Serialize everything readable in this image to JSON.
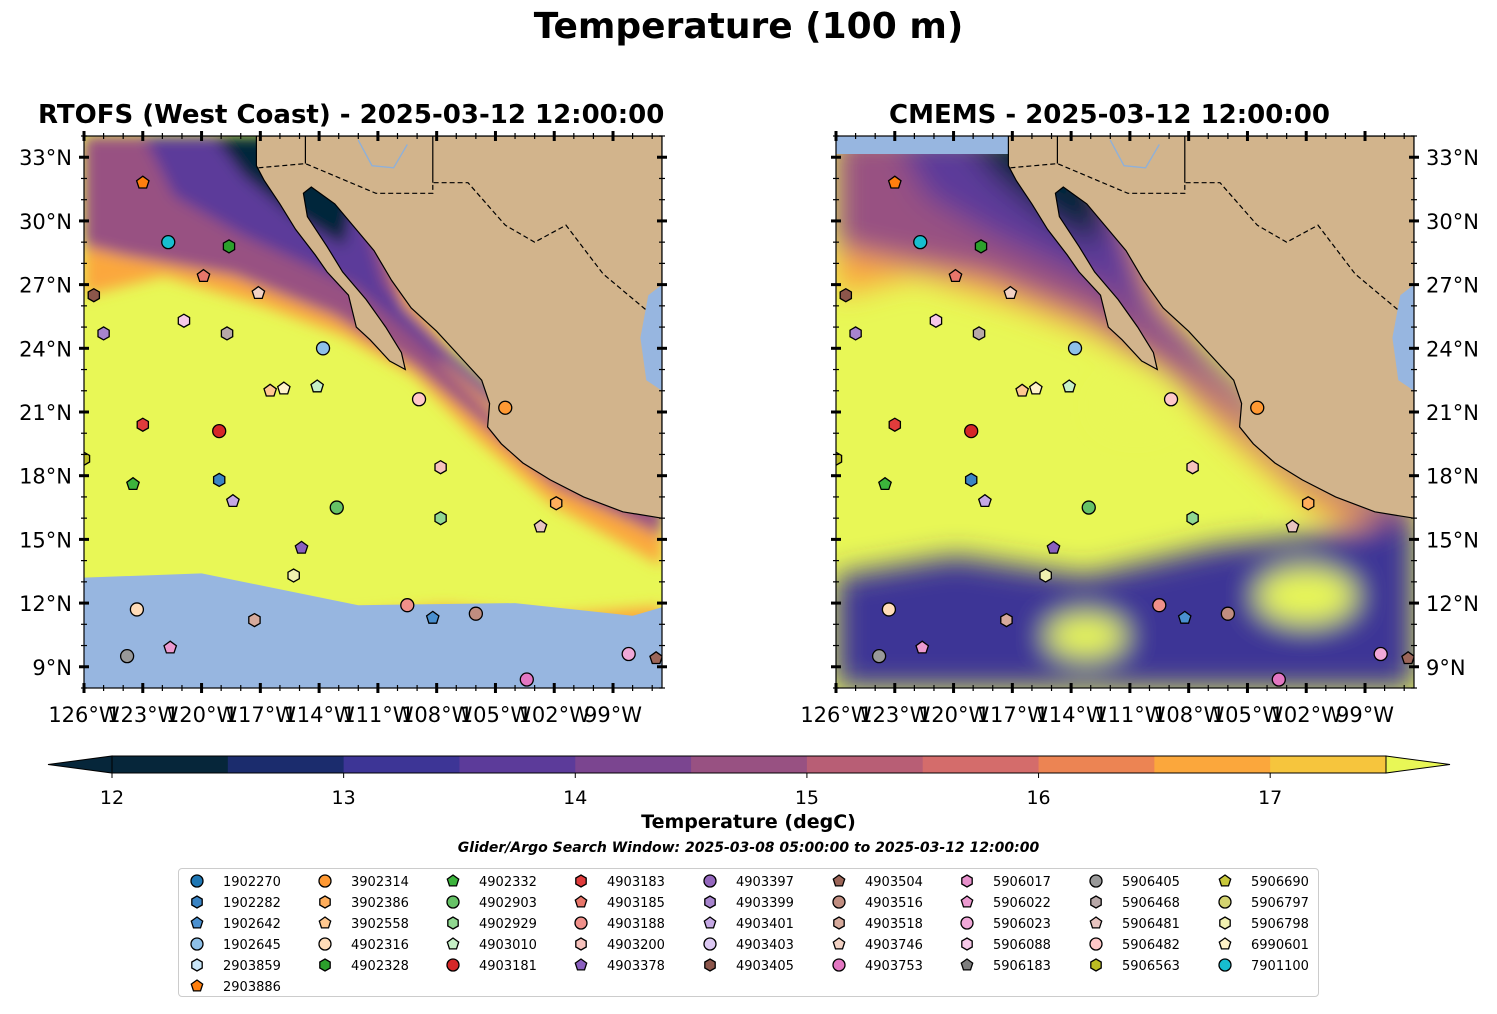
{
  "title": "Temperature (100 m)",
  "panels": [
    {
      "id": "rtofs",
      "title": "RTOFS (West Coast) - 2025-03-12 12:00:00"
    },
    {
      "id": "cmems",
      "title": "CMEMS - 2025-03-12 12:00:00"
    }
  ],
  "colors": {
    "land": "#d2b48c",
    "mask_water": "#97b6e0",
    "ramp": [
      "#06263a",
      "#1b2c6d",
      "#3d3596",
      "#5c3b9a",
      "#7b4590",
      "#985182",
      "#b85e75",
      "#d46c6b",
      "#ec8453",
      "#fba73c",
      "#f6c53d",
      "#e8f756"
    ]
  },
  "chart_data": {
    "type": "map",
    "xlabel": "",
    "ylabel": "",
    "lon_range": [
      -126,
      -96.5
    ],
    "lat_range": [
      8,
      34
    ],
    "lon_ticks": [
      -126,
      -123,
      -120,
      -117,
      -114,
      -111,
      -108,
      -105,
      -102,
      -99
    ],
    "lon_tick_labels": [
      "126°W",
      "123°W",
      "120°W",
      "117°W",
      "114°W",
      "111°W",
      "108°W",
      "105°W",
      "102°W",
      "99°W"
    ],
    "lat_ticks": [
      9,
      12,
      15,
      18,
      21,
      24,
      27,
      30,
      33
    ],
    "lat_tick_labels": [
      "9°N",
      "12°N",
      "15°N",
      "18°N",
      "21°N",
      "24°N",
      "27°N",
      "30°N",
      "33°N"
    ],
    "colorbar": {
      "label": "Temperature (degC)",
      "min": 12,
      "max": 17.5,
      "step": 0.5,
      "ticks": [
        12,
        13,
        14,
        15,
        16,
        17
      ],
      "tick_labels": [
        "12",
        "13",
        "14",
        "15",
        "16",
        "17"
      ],
      "extend": "both"
    },
    "search_window": "Glider/Argo Search Window: 2025-03-08 05:00:00 to 2025-03-12 12:00:00",
    "legend_placement": "bottom-center",
    "floats": [
      {
        "id": "1902270",
        "marker": "circle",
        "color": "#1f77b4"
      },
      {
        "id": "1902282",
        "marker": "hexagon",
        "color": "#3a84c4",
        "lon": -119.1,
        "lat": 17.8
      },
      {
        "id": "1902642",
        "marker": "pentagon",
        "color": "#4a90d0",
        "lon": -108.2,
        "lat": 11.3
      },
      {
        "id": "1902645",
        "marker": "circle",
        "color": "#8ec0e8",
        "lon": -113.8,
        "lat": 24.0
      },
      {
        "id": "2903859",
        "marker": "hexagon",
        "color": "#c9e6f8"
      },
      {
        "id": "2903886",
        "marker": "pentagon",
        "color": "#ff7f0e",
        "lon": -123.0,
        "lat": 31.8
      },
      {
        "id": "3902314",
        "marker": "circle",
        "color": "#ff9933",
        "lon": -104.5,
        "lat": 21.2
      },
      {
        "id": "3902386",
        "marker": "hexagon",
        "color": "#ffae5c",
        "lon": -101.9,
        "lat": 16.7
      },
      {
        "id": "3902558",
        "marker": "pentagon",
        "color": "#ffc890",
        "lon": -116.5,
        "lat": 22.0
      },
      {
        "id": "4902316",
        "marker": "circle",
        "color": "#ffdcb8",
        "lon": -123.3,
        "lat": 11.7
      },
      {
        "id": "4902328",
        "marker": "hexagon",
        "color": "#2ca02c",
        "lon": -118.6,
        "lat": 28.8
      },
      {
        "id": "4902332",
        "marker": "pentagon",
        "color": "#3cb43c",
        "lon": -123.5,
        "lat": 17.6
      },
      {
        "id": "4902903",
        "marker": "circle",
        "color": "#66c266",
        "lon": -113.1,
        "lat": 16.5
      },
      {
        "id": "4902929",
        "marker": "hexagon",
        "color": "#90d890",
        "lon": -107.8,
        "lat": 16.0
      },
      {
        "id": "4903010",
        "marker": "pentagon",
        "color": "#c6f0c6",
        "lon": -114.1,
        "lat": 22.2
      },
      {
        "id": "4903181",
        "marker": "circle",
        "color": "#d62728",
        "lon": -119.1,
        "lat": 20.1
      },
      {
        "id": "4903183",
        "marker": "hexagon",
        "color": "#e03c3c",
        "lon": -123.0,
        "lat": 20.4
      },
      {
        "id": "4903185",
        "marker": "pentagon",
        "color": "#e8766a",
        "lon": -119.9,
        "lat": 27.4
      },
      {
        "id": "4903188",
        "marker": "circle",
        "color": "#f0908a",
        "lon": -109.5,
        "lat": 11.9
      },
      {
        "id": "4903200",
        "marker": "hexagon",
        "color": "#f7c2bc",
        "lon": -107.8,
        "lat": 18.4
      },
      {
        "id": "4903378",
        "marker": "pentagon",
        "color": "#8a5fbf",
        "lon": -114.9,
        "lat": 14.6
      },
      {
        "id": "4903397",
        "marker": "circle",
        "color": "#9467bd"
      },
      {
        "id": "4903399",
        "marker": "hexagon",
        "color": "#a784cd",
        "lon": -125.0,
        "lat": 24.7
      },
      {
        "id": "4903401",
        "marker": "pentagon",
        "color": "#c5a8e4",
        "lon": -118.4,
        "lat": 16.8
      },
      {
        "id": "4903403",
        "marker": "circle",
        "color": "#dcc8f2"
      },
      {
        "id": "4903405",
        "marker": "hexagon",
        "color": "#8c564b",
        "lon": -125.5,
        "lat": 26.5
      },
      {
        "id": "4903504",
        "marker": "pentagon",
        "color": "#9c6659",
        "lon": -96.8,
        "lat": 9.4
      },
      {
        "id": "4903516",
        "marker": "circle",
        "color": "#c08d80",
        "lon": -106.0,
        "lat": 11.5
      },
      {
        "id": "4903518",
        "marker": "hexagon",
        "color": "#d6aa9c",
        "lon": -117.3,
        "lat": 11.2
      },
      {
        "id": "4903746",
        "marker": "pentagon",
        "color": "#f2d2c4",
        "lon": -117.1,
        "lat": 26.6
      },
      {
        "id": "4903753",
        "marker": "circle",
        "color": "#e377c2",
        "lon": -103.4,
        "lat": 8.4
      },
      {
        "id": "5906017",
        "marker": "hexagon",
        "color": "#e890cc"
      },
      {
        "id": "5906022",
        "marker": "pentagon",
        "color": "#ec9ad0",
        "lon": -121.6,
        "lat": 9.9
      },
      {
        "id": "5906023",
        "marker": "circle",
        "color": "#f0a8d8",
        "lon": -98.2,
        "lat": 9.6
      },
      {
        "id": "5906088",
        "marker": "hexagon",
        "color": "#f6c8e8",
        "lon": -120.9,
        "lat": 25.3
      },
      {
        "id": "5906183",
        "marker": "pentagon",
        "color": "#7f7f7f"
      },
      {
        "id": "5906405",
        "marker": "circle",
        "color": "#999999",
        "lon": -123.8,
        "lat": 9.5
      },
      {
        "id": "5906468",
        "marker": "hexagon",
        "color": "#b8a8a8",
        "lon": -118.7,
        "lat": 24.7
      },
      {
        "id": "5906481",
        "marker": "pentagon",
        "color": "#e8c4c0",
        "lon": -102.7,
        "lat": 15.6
      },
      {
        "id": "5906482",
        "marker": "circle",
        "color": "#ffc8c8",
        "lon": -108.9,
        "lat": 21.6
      },
      {
        "id": "5906563",
        "marker": "hexagon",
        "color": "#bcbd22",
        "lon": -126.0,
        "lat": 18.8
      },
      {
        "id": "5906690",
        "marker": "pentagon",
        "color": "#c8c83a"
      },
      {
        "id": "5906797",
        "marker": "circle",
        "color": "#d4d470"
      },
      {
        "id": "5906798",
        "marker": "hexagon",
        "color": "#f0f0b0",
        "lon": -115.3,
        "lat": 13.3
      },
      {
        "id": "6990601",
        "marker": "pentagon",
        "color": "#fff2c8",
        "lon": -115.8,
        "lat": 22.1
      },
      {
        "id": "7901100",
        "marker": "circle",
        "color": "#17becf",
        "lon": -121.7,
        "lat": 29.0
      }
    ]
  }
}
